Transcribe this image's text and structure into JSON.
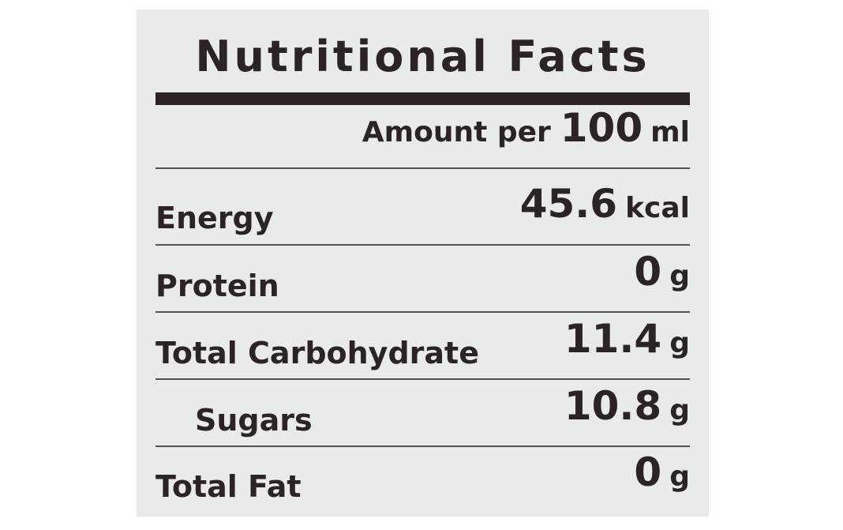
{
  "label": {
    "title": "Nutritional Facts",
    "serving": {
      "prefix": "Amount per",
      "value": "100",
      "unit": "ml"
    },
    "rows": [
      {
        "name": "Energy",
        "value": "45.6",
        "unit": "kcal"
      },
      {
        "name": "Protein",
        "value": "0",
        "unit": "g"
      },
      {
        "name": "Total Carbohydrate",
        "value": "11.4",
        "unit": "g"
      },
      {
        "name": "Sugars",
        "value": "10.8",
        "unit": "g"
      },
      {
        "name": "Total Fat",
        "value": "0",
        "unit": "g"
      }
    ]
  },
  "colors": {
    "panel_background": "#e9ebe8",
    "ink": "#2b2422",
    "page_background": "#ffffff"
  }
}
